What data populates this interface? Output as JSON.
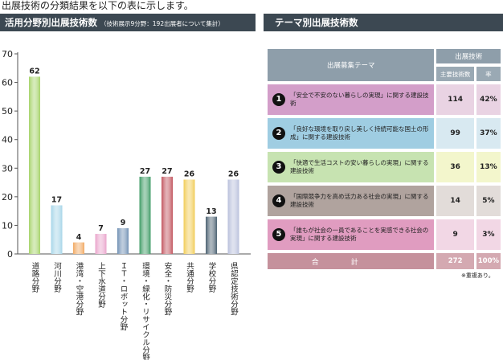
{
  "intro_text": "出展技術の分類結果を以下の表に示します。",
  "left_panel": {
    "title": "活用分野別出展技術数",
    "subtitle": "（技術展示9分野：192出展者について集計）"
  },
  "right_panel": {
    "title": "テーマ別出展技術数"
  },
  "chart_data": {
    "type": "bar",
    "categories": [
      "道路分野",
      "河川分野",
      "港湾・空港分野",
      "上下水道分野",
      "ＩＴ・ロボット分野",
      "環境・緑化・リサイクル分野",
      "安全・防災分野",
      "共通分野",
      "学校分野",
      "県認定技術分野"
    ],
    "values": [
      62,
      17,
      4,
      7,
      9,
      27,
      27,
      26,
      13,
      26
    ],
    "colors": [
      "#a6d36a",
      "#a5d5e8",
      "#f1a962",
      "#e9a3cb",
      "#6f8fb3",
      "#3d9a64",
      "#c2545e",
      "#f1cc55",
      "#4a6070",
      "#b8bfdb"
    ],
    "ylim": [
      0,
      70
    ],
    "yticks": [
      0,
      10,
      20,
      30,
      40,
      50,
      60,
      70
    ],
    "grid": false,
    "title": "",
    "xlabel": "",
    "ylabel": ""
  },
  "table": {
    "header": {
      "theme": "出展募集テーマ",
      "group": "出展技術",
      "count": "主要技術数",
      "rate": "率"
    },
    "rows": [
      {
        "num": "1",
        "text": "「安全で不安のない暮らしの実現」に関する建設技術",
        "count": "114",
        "rate": "42%",
        "color": "#d39ec9",
        "val_color": "#e9d3e3"
      },
      {
        "num": "2",
        "text": "「良好な環境を取り戻し美しく持続可能な国土の形成」に関する建設技術",
        "count": "99",
        "rate": "37%",
        "color": "#9fcde2",
        "val_color": "#d8e9f1"
      },
      {
        "num": "3",
        "text": "「快適で生活コストの安い暮らしの実現」に関する建設技術",
        "count": "36",
        "rate": "13%",
        "color": "#c7e3b1",
        "val_color": "#f3f6cc"
      },
      {
        "num": "4",
        "text": "「国際競争力を高め活力ある社会の実現」に関する建設技術",
        "count": "14",
        "rate": "5%",
        "color": "#b0a39e",
        "val_color": "#e2dcd9"
      },
      {
        "num": "5",
        "text": "「誰もが社会の一員であることを実感できる社会の実現」に関する建設技術",
        "count": "9",
        "rate": "3%",
        "color": "#e09cc0",
        "val_color": "#f2d7e5"
      }
    ],
    "total": {
      "label": "合計",
      "count": "272",
      "rate": "100%"
    }
  },
  "note": "※重複あり。"
}
